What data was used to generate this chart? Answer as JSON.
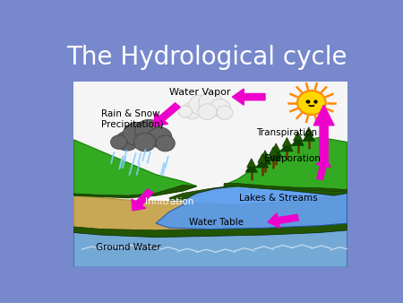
{
  "title": "The Hydrological cycle",
  "title_color": "white",
  "title_fontsize": 20,
  "bg_color": "#7788cc",
  "arrow_color": "#ee00cc",
  "labels": {
    "water_vapor": "Water Vapor",
    "rain_snow": "Rain & Snow\nPrecipitation)",
    "transpiration": "Transpiration",
    "evaporation": "Evaporation",
    "infiltration": "Infiltration",
    "lakes_streams": "Lakes & Streams",
    "water_table": "Water Table",
    "ground_water": "Ground Water"
  },
  "label_fontsize": 7.5,
  "sky_color": "#f5f5f5",
  "grass_color": "#33aa22",
  "grass_dark": "#228811",
  "water_color": "#5599ee",
  "ground_sand": "#c8a855",
  "ground_dark": "#b89040",
  "gw_blue": "#66aaee"
}
